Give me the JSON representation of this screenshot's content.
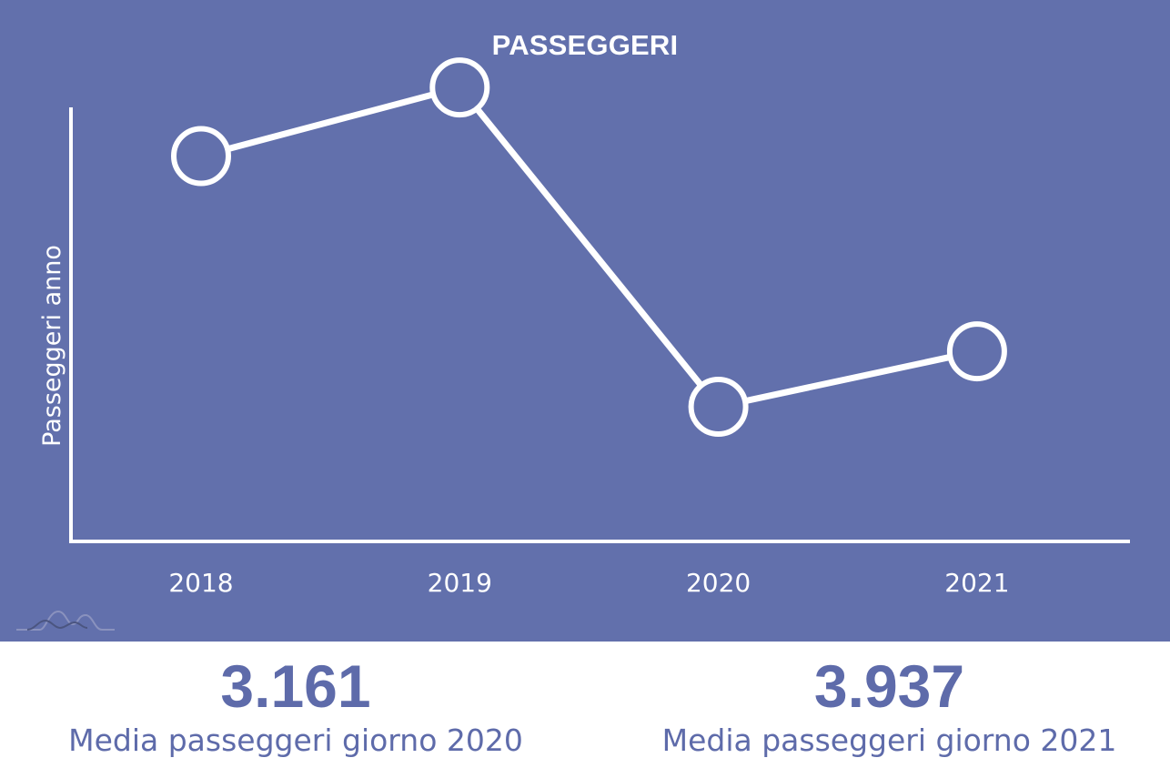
{
  "chart_data": {
    "type": "line",
    "title": "PASSEGGERI",
    "ylabel": "Passeggeri anno",
    "xlabel": "",
    "categories": [
      "2018",
      "2019",
      "2020",
      "2021"
    ],
    "series": [
      {
        "values": [
          1425000,
          1555000,
          950000,
          1055000
        ]
      }
    ],
    "ylim": [
      700000,
      1700000
    ],
    "grid": false,
    "markers": "hollow-circle"
  },
  "stats": [
    {
      "value": "3.161",
      "label": "Media passeggeri giorno 2020"
    },
    {
      "value": "3.937",
      "label": "Media passeggeri giorno 2021"
    }
  ],
  "colors": {
    "panel_background": "#6270AC",
    "line": "#ffffff",
    "stat_text": "#5E6BAA"
  },
  "logo": {
    "icon": "mountains-logo-icon"
  }
}
